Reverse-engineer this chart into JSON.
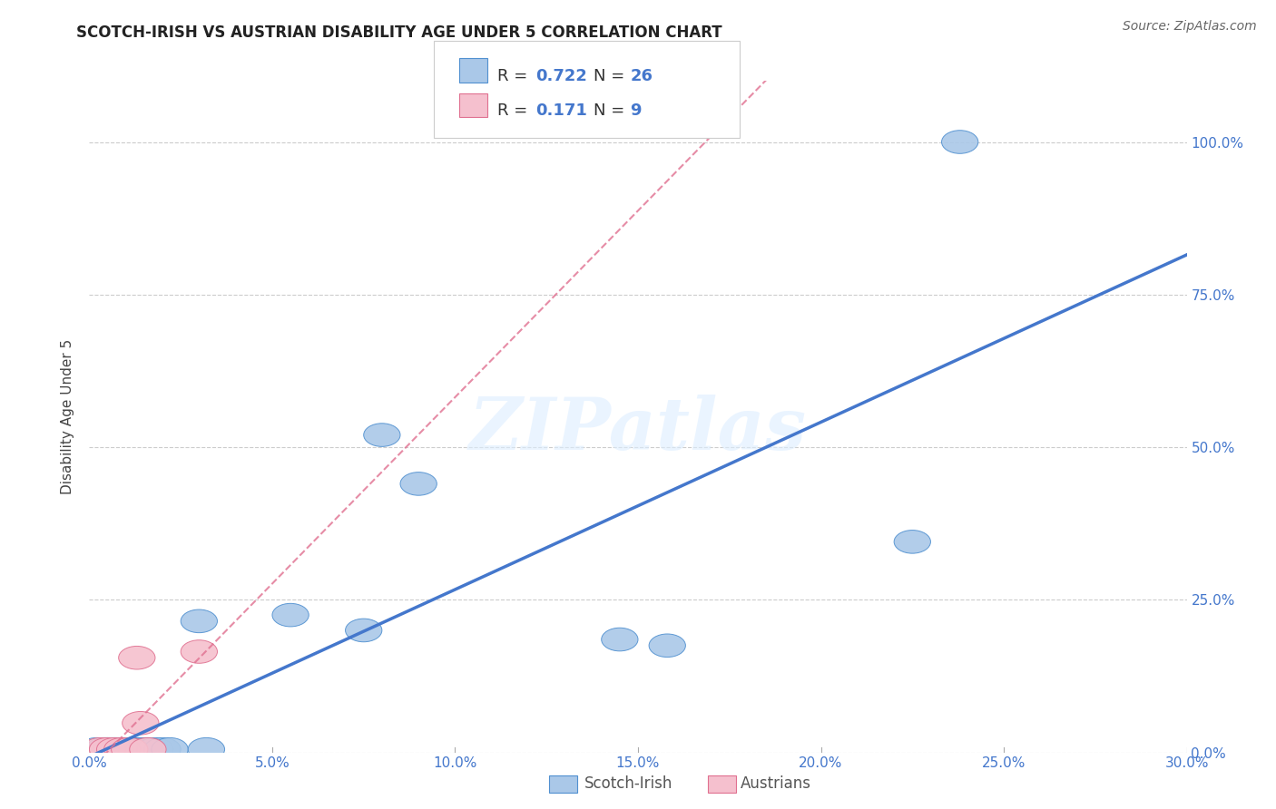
{
  "title": "SCOTCH-IRISH VS AUSTRIAN DISABILITY AGE UNDER 5 CORRELATION CHART",
  "source": "Source: ZipAtlas.com",
  "ylabel": "Disability Age Under 5",
  "xlim": [
    0.0,
    0.3
  ],
  "ylim": [
    0.0,
    1.1
  ],
  "scotch_irish": {
    "x": [
      0.002,
      0.004,
      0.005,
      0.006,
      0.007,
      0.008,
      0.009,
      0.01,
      0.011,
      0.012,
      0.013,
      0.015,
      0.016,
      0.018,
      0.02,
      0.022,
      0.03,
      0.032,
      0.055,
      0.075,
      0.08,
      0.09,
      0.145,
      0.158,
      0.225,
      0.238
    ],
    "y": [
      0.005,
      0.005,
      0.005,
      0.005,
      0.005,
      0.005,
      0.005,
      0.005,
      0.005,
      0.005,
      0.005,
      0.005,
      0.005,
      0.005,
      0.005,
      0.005,
      0.215,
      0.005,
      0.225,
      0.2,
      0.52,
      0.44,
      0.185,
      0.175,
      0.345,
      1.0
    ],
    "R": 0.722,
    "N": 26,
    "color": "#aac8e8",
    "edge_color": "#5090d0",
    "line_color": "#4477cc"
  },
  "austrians": {
    "x": [
      0.003,
      0.005,
      0.007,
      0.009,
      0.011,
      0.013,
      0.014,
      0.016,
      0.03
    ],
    "y": [
      0.005,
      0.005,
      0.005,
      0.005,
      0.005,
      0.155,
      0.048,
      0.005,
      0.165
    ],
    "R": 0.171,
    "N": 9,
    "color": "#f5c0ce",
    "edge_color": "#e07090",
    "line_color": "#e07090"
  },
  "watermark": "ZIPatlas",
  "grid_color": "#cccccc",
  "title_fontsize": 12,
  "axis_fontsize": 11,
  "tick_fontsize": 11,
  "source_fontsize": 10,
  "x_ticks": [
    0.0,
    0.05,
    0.1,
    0.15,
    0.2,
    0.25,
    0.3
  ],
  "x_tick_labels": [
    "0.0%",
    "5.0%",
    "10.0%",
    "15.0%",
    "20.0%",
    "25.0%",
    "30.0%"
  ],
  "y_ticks": [
    0.0,
    0.25,
    0.5,
    0.75,
    1.0
  ],
  "y_tick_labels": [
    "0.0%",
    "25.0%",
    "50.0%",
    "75.0%",
    "100.0%"
  ]
}
